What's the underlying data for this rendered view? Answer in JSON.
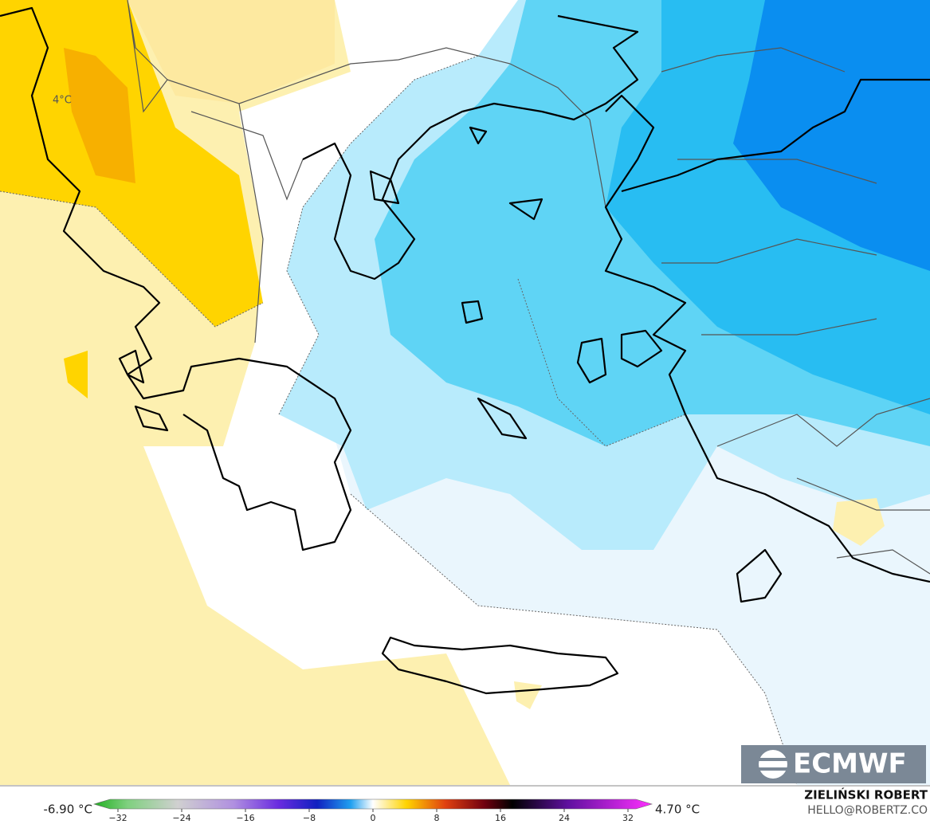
{
  "map": {
    "contour_label": "4°C",
    "logo": "ECMWF"
  },
  "colorbar": {
    "min_label": "-6.90 °C",
    "max_label": "4.70 °C",
    "range": [
      -35,
      35
    ],
    "ticks": [
      {
        "value": -32,
        "label": "−32"
      },
      {
        "value": -24,
        "label": "−24"
      },
      {
        "value": -16,
        "label": "−16"
      },
      {
        "value": -8,
        "label": "−8"
      },
      0,
      8,
      16,
      24,
      32
    ]
  },
  "credit": {
    "name": "ZIELIŃSKI ROBERT",
    "email": "HELLO@ROBERTZ.CO"
  }
}
